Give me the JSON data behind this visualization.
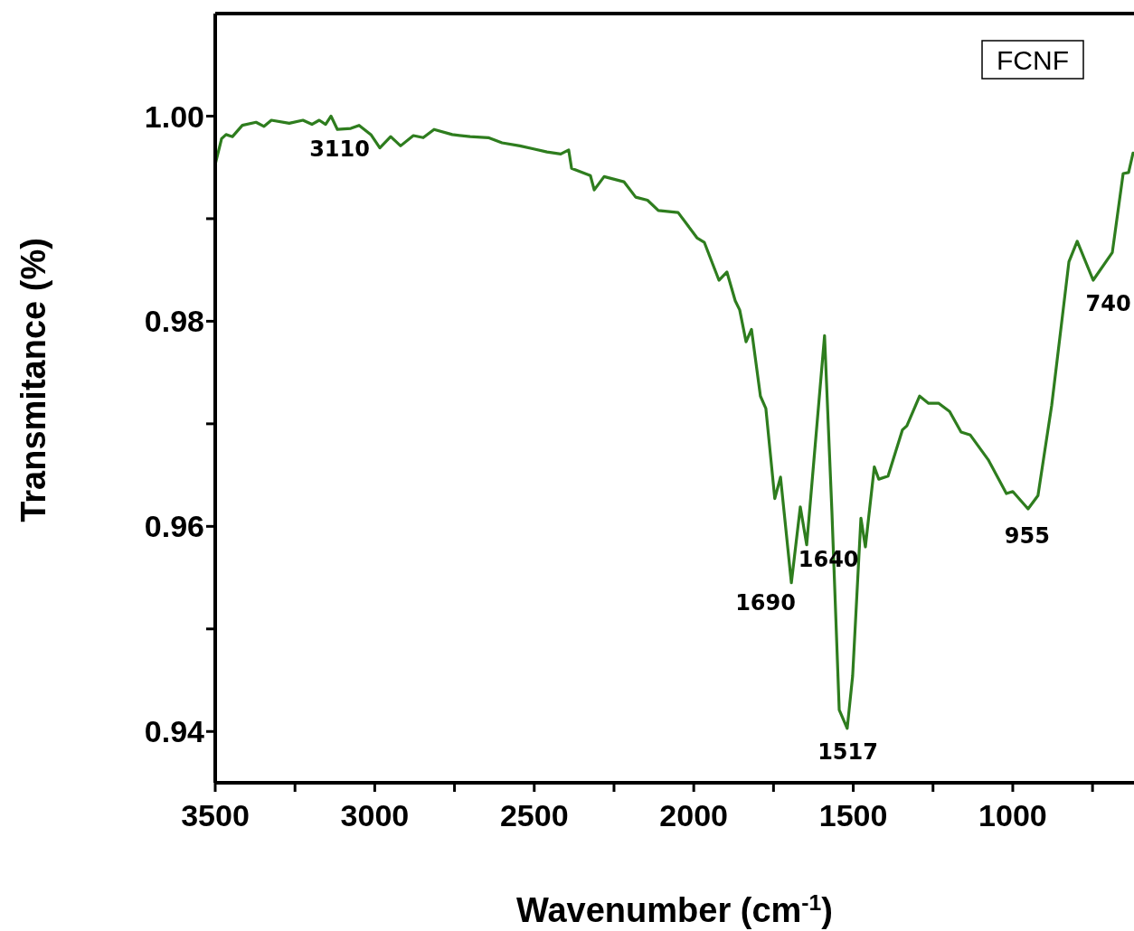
{
  "chart_data": {
    "type": "line",
    "xlabel": "Wavenumber (cm$^{-1}$)",
    "ylabel": "Transmitance (%)",
    "x": [
      3500,
      3480,
      3466,
      3446,
      3415,
      3372,
      3347,
      3324,
      3268,
      3225,
      3197,
      3174,
      3154,
      3137,
      3117,
      3075,
      3049,
      3012,
      2984,
      2950,
      2919,
      2879,
      2848,
      2814,
      2757,
      2701,
      2644,
      2601,
      2545,
      2502,
      2460,
      2417,
      2392,
      2383,
      2324,
      2312,
      2281,
      2219,
      2182,
      2145,
      2111,
      2049,
      1989,
      1967,
      1921,
      1896,
      1870,
      1856,
      1836,
      1819,
      1791,
      1774,
      1746,
      1728,
      1694,
      1666,
      1646,
      1590,
      1567,
      1544,
      1519,
      1502,
      1476,
      1462,
      1434,
      1420,
      1391,
      1346,
      1332,
      1292,
      1264,
      1232,
      1198,
      1162,
      1133,
      1077,
      1020,
      1000,
      952,
      921,
      878,
      844,
      824,
      798,
      748,
      688,
      654,
      637,
      623
    ],
    "series": [
      {
        "color": "#2e7d1e",
        "values": [
          0.9953,
          0.9978,
          0.9982,
          0.998,
          0.9991,
          0.9994,
          0.999,
          0.9996,
          0.9993,
          0.9996,
          0.9992,
          0.9996,
          0.9992,
          1.0,
          0.9987,
          0.9988,
          0.9991,
          0.9982,
          0.9969,
          0.998,
          0.9971,
          0.9981,
          0.9979,
          0.9987,
          0.9982,
          0.998,
          0.9979,
          0.9974,
          0.9971,
          0.9968,
          0.9965,
          0.9963,
          0.9967,
          0.9949,
          0.9942,
          0.9928,
          0.9941,
          0.9936,
          0.9921,
          0.9918,
          0.9908,
          0.9906,
          0.9881,
          0.9877,
          0.984,
          0.9848,
          0.982,
          0.9811,
          0.978,
          0.9792,
          0.9727,
          0.9715,
          0.9627,
          0.9648,
          0.9545,
          0.9619,
          0.9582,
          0.9786,
          0.9615,
          0.9421,
          0.9403,
          0.9454,
          0.9608,
          0.958,
          0.9658,
          0.9646,
          0.9649,
          0.9694,
          0.9698,
          0.9727,
          0.972,
          0.972,
          0.9712,
          0.9692,
          0.9689,
          0.9665,
          0.9632,
          0.9634,
          0.9617,
          0.963,
          0.9718,
          0.9806,
          0.9858,
          0.9878,
          0.984,
          0.9867,
          0.9944,
          0.9945,
          0.9964
        ]
      }
    ],
    "xlim": [
      3500,
      620
    ],
    "xticks": [
      3500,
      {
        "value": 3250,
        "label": null
      },
      3000,
      {
        "value": 2750,
        "label": null
      },
      2500,
      {
        "value": 2250,
        "label": null
      },
      2000,
      {
        "value": 1750,
        "label": null
      },
      1500,
      {
        "value": 1250,
        "label": null
      },
      1000,
      {
        "value": 750,
        "label": null
      }
    ],
    "ylim": [
      0.935,
      1.01
    ],
    "yticks": [
      {
        "value": 0.94,
        "label": "0.94"
      },
      {
        "value": 0.95,
        "label": null
      },
      {
        "value": 0.96,
        "label": "0.96"
      },
      {
        "value": 0.97,
        "label": null
      },
      {
        "value": 0.98,
        "label": "0.98"
      },
      {
        "value": 0.99,
        "label": null
      },
      {
        "value": 1.0,
        "label": "1.00"
      }
    ],
    "annotations": [
      "FCNF",
      {
        "text": "3110",
        "x": 3110,
        "y": 0.9987
      },
      {
        "text": "1690",
        "x": 1690,
        "y": 0.9545
      },
      {
        "text": "1640",
        "x": 1640,
        "y": 0.9582
      },
      {
        "text": "1517",
        "x": 1517,
        "y": 0.9403
      },
      {
        "text": "955",
        "x": 955,
        "y": 0.9617
      },
      {
        "text": "740",
        "x": 740,
        "y": 0.984
      }
    ],
    "grid": false,
    "legend": false,
    "marker": "none",
    "line_style": "solid"
  }
}
